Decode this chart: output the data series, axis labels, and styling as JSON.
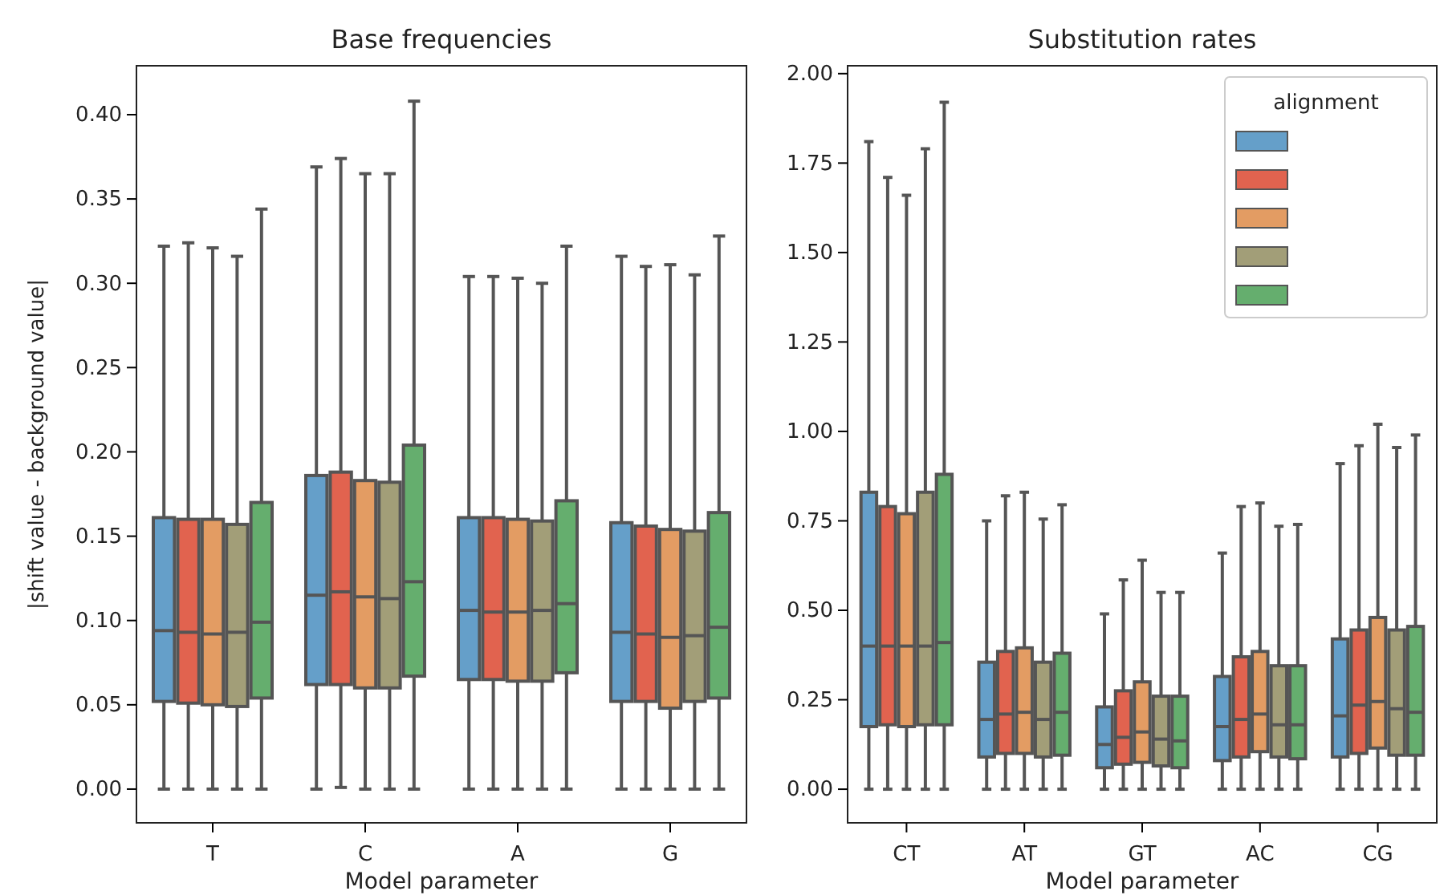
{
  "chart_data": [
    {
      "type": "box",
      "title": "Base frequencies",
      "xlabel": "Model parameter",
      "ylabel": "|shift value - background value|",
      "categories": [
        "T",
        "C",
        "A",
        "G"
      ],
      "ylim": [
        -0.02,
        0.429
      ],
      "yticks": [
        {
          "value": 0,
          "label": "0.00"
        },
        {
          "value": 0.05,
          "label": "0.05"
        },
        {
          "value": 0.1,
          "label": "0.10"
        },
        {
          "value": 0.15,
          "label": "0.15"
        },
        {
          "value": 0.2,
          "label": "0.20"
        },
        {
          "value": 0.25,
          "label": "0.25"
        },
        {
          "value": 0.3,
          "label": "0.30"
        },
        {
          "value": 0.35,
          "label": "0.35"
        },
        {
          "value": 0.4,
          "label": "0.40"
        }
      ],
      "grid": false,
      "legend": false,
      "series": [
        {
          "color": "#659fc9",
          "boxes": [
            {
              "low": 0,
              "q1": 0.052,
              "median": 0.094,
              "q3": 0.161,
              "high": 0.322
            },
            {
              "low": 0,
              "q1": 0.062,
              "median": 0.115,
              "q3": 0.186,
              "high": 0.369
            },
            {
              "low": 0,
              "q1": 0.065,
              "median": 0.106,
              "q3": 0.161,
              "high": 0.304
            },
            {
              "low": 0,
              "q1": 0.052,
              "median": 0.093,
              "q3": 0.158,
              "high": 0.316
            }
          ]
        },
        {
          "color": "#e1634f",
          "boxes": [
            {
              "low": 0,
              "q1": 0.051,
              "median": 0.093,
              "q3": 0.16,
              "high": 0.324
            },
            {
              "low": 0.001,
              "q1": 0.062,
              "median": 0.117,
              "q3": 0.188,
              "high": 0.374
            },
            {
              "low": 0,
              "q1": 0.065,
              "median": 0.105,
              "q3": 0.161,
              "high": 0.304
            },
            {
              "low": 0,
              "q1": 0.052,
              "median": 0.092,
              "q3": 0.156,
              "high": 0.31
            }
          ]
        },
        {
          "color": "#e39c63",
          "boxes": [
            {
              "low": 0,
              "q1": 0.05,
              "median": 0.092,
              "q3": 0.16,
              "high": 0.321
            },
            {
              "low": 0,
              "q1": 0.06,
              "median": 0.114,
              "q3": 0.183,
              "high": 0.365
            },
            {
              "low": 0,
              "q1": 0.064,
              "median": 0.105,
              "q3": 0.16,
              "high": 0.303
            },
            {
              "low": 0,
              "q1": 0.048,
              "median": 0.09,
              "q3": 0.154,
              "high": 0.311
            }
          ]
        },
        {
          "color": "#a29e78",
          "boxes": [
            {
              "low": 0,
              "q1": 0.049,
              "median": 0.093,
              "q3": 0.157,
              "high": 0.316
            },
            {
              "low": 0,
              "q1": 0.06,
              "median": 0.113,
              "q3": 0.182,
              "high": 0.365
            },
            {
              "low": 0,
              "q1": 0.064,
              "median": 0.106,
              "q3": 0.159,
              "high": 0.3
            },
            {
              "low": 0,
              "q1": 0.052,
              "median": 0.091,
              "q3": 0.153,
              "high": 0.305
            }
          ]
        },
        {
          "color": "#65ae6e",
          "boxes": [
            {
              "low": 0,
              "q1": 0.054,
              "median": 0.099,
              "q3": 0.17,
              "high": 0.344
            },
            {
              "low": 0,
              "q1": 0.067,
              "median": 0.123,
              "q3": 0.204,
              "high": 0.408
            },
            {
              "low": 0,
              "q1": 0.069,
              "median": 0.11,
              "q3": 0.171,
              "high": 0.322
            },
            {
              "low": 0,
              "q1": 0.054,
              "median": 0.096,
              "q3": 0.164,
              "high": 0.328
            }
          ]
        }
      ]
    },
    {
      "type": "box",
      "title": "Substitution rates",
      "xlabel": "Model parameter",
      "categories": [
        "CT",
        "AT",
        "GT",
        "AC",
        "CG"
      ],
      "ylim": [
        -0.094,
        2.022
      ],
      "yticks": [
        {
          "value": 0,
          "label": "0.00"
        },
        {
          "value": 0.25,
          "label": "0.25"
        },
        {
          "value": 0.5,
          "label": "0.50"
        },
        {
          "value": 0.75,
          "label": "0.75"
        },
        {
          "value": 1,
          "label": "1.00"
        },
        {
          "value": 1.25,
          "label": "1.25"
        },
        {
          "value": 1.5,
          "label": "1.50"
        },
        {
          "value": 1.75,
          "label": "1.75"
        },
        {
          "value": 2,
          "label": "2.00"
        }
      ],
      "grid": false,
      "legend_title": "alignment",
      "series": [
        {
          "color": "#659fc9",
          "boxes": [
            {
              "low": 0,
              "q1": 0.175,
              "median": 0.4,
              "q3": 0.83,
              "high": 1.81
            },
            {
              "low": 0,
              "q1": 0.09,
              "median": 0.195,
              "q3": 0.355,
              "high": 0.75
            },
            {
              "low": 0,
              "q1": 0.06,
              "median": 0.125,
              "q3": 0.23,
              "high": 0.49
            },
            {
              "low": 0,
              "q1": 0.08,
              "median": 0.175,
              "q3": 0.315,
              "high": 0.66
            },
            {
              "low": 0,
              "q1": 0.09,
              "median": 0.205,
              "q3": 0.42,
              "high": 0.91
            }
          ]
        },
        {
          "color": "#e1634f",
          "boxes": [
            {
              "low": 0,
              "q1": 0.18,
              "median": 0.4,
              "q3": 0.79,
              "high": 1.71
            },
            {
              "low": 0,
              "q1": 0.1,
              "median": 0.21,
              "q3": 0.385,
              "high": 0.82
            },
            {
              "low": 0,
              "q1": 0.07,
              "median": 0.145,
              "q3": 0.275,
              "high": 0.585
            },
            {
              "low": 0,
              "q1": 0.09,
              "median": 0.195,
              "q3": 0.37,
              "high": 0.79
            },
            {
              "low": 0,
              "q1": 0.1,
              "median": 0.235,
              "q3": 0.445,
              "high": 0.96
            }
          ]
        },
        {
          "color": "#e39c63",
          "boxes": [
            {
              "low": 0,
              "q1": 0.175,
              "median": 0.4,
              "q3": 0.77,
              "high": 1.66
            },
            {
              "low": 0,
              "q1": 0.1,
              "median": 0.215,
              "q3": 0.395,
              "high": 0.83
            },
            {
              "low": 0,
              "q1": 0.075,
              "median": 0.16,
              "q3": 0.3,
              "high": 0.64
            },
            {
              "low": 0,
              "q1": 0.105,
              "median": 0.21,
              "q3": 0.385,
              "high": 0.8
            },
            {
              "low": 0,
              "q1": 0.115,
              "median": 0.245,
              "q3": 0.48,
              "high": 1.02
            }
          ]
        },
        {
          "color": "#a29e78",
          "boxes": [
            {
              "low": 0,
              "q1": 0.18,
              "median": 0.4,
              "q3": 0.83,
              "high": 1.79
            },
            {
              "low": 0,
              "q1": 0.09,
              "median": 0.195,
              "q3": 0.355,
              "high": 0.755
            },
            {
              "low": 0,
              "q1": 0.065,
              "median": 0.14,
              "q3": 0.26,
              "high": 0.55
            },
            {
              "low": 0,
              "q1": 0.09,
              "median": 0.18,
              "q3": 0.345,
              "high": 0.735
            },
            {
              "low": 0,
              "q1": 0.095,
              "median": 0.225,
              "q3": 0.445,
              "high": 0.955
            }
          ]
        },
        {
          "color": "#65ae6e",
          "boxes": [
            {
              "low": 0,
              "q1": 0.18,
              "median": 0.41,
              "q3": 0.88,
              "high": 1.92
            },
            {
              "low": 0,
              "q1": 0.095,
              "median": 0.215,
              "q3": 0.38,
              "high": 0.795
            },
            {
              "low": 0,
              "q1": 0.06,
              "median": 0.135,
              "q3": 0.26,
              "high": 0.55
            },
            {
              "low": 0,
              "q1": 0.085,
              "median": 0.18,
              "q3": 0.345,
              "high": 0.74
            },
            {
              "low": 0,
              "q1": 0.095,
              "median": 0.215,
              "q3": 0.455,
              "high": 0.99
            }
          ]
        }
      ]
    }
  ]
}
